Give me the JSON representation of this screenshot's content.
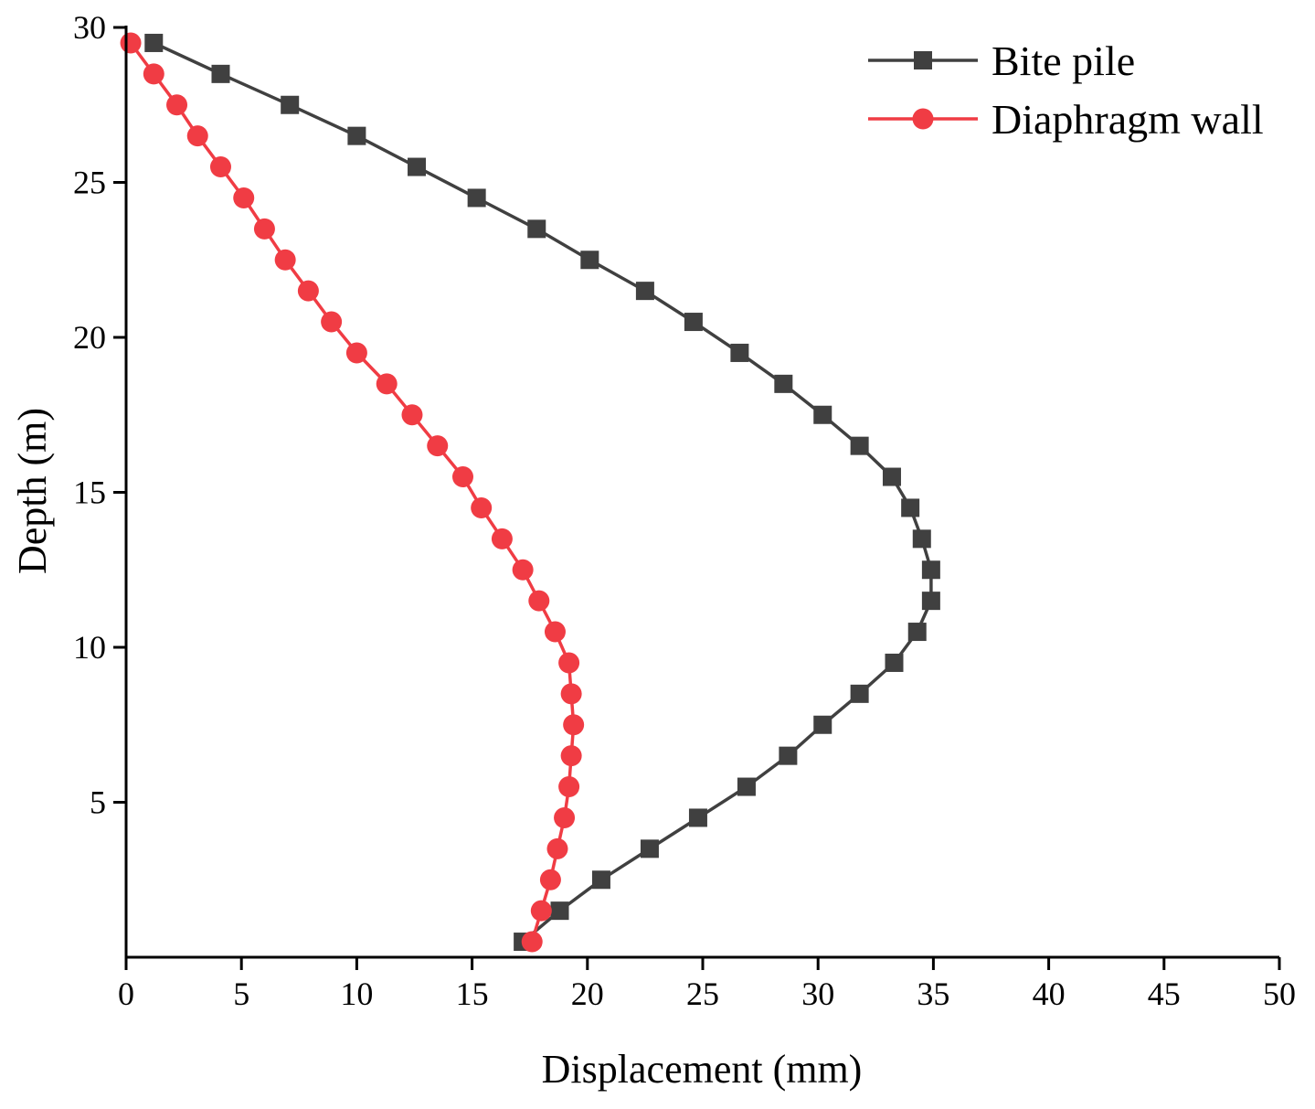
{
  "chart_data": {
    "type": "line",
    "title": "",
    "xlabel": "Displacement (mm)",
    "ylabel": "Depth (m)",
    "xlim": [
      0,
      50
    ],
    "ylim": [
      0,
      30
    ],
    "x_ticks": [
      0,
      5,
      10,
      15,
      20,
      25,
      30,
      35,
      40,
      45,
      50
    ],
    "y_ticks": [
      5,
      10,
      15,
      20,
      25,
      30
    ],
    "grid": false,
    "legend": "top-right",
    "series": [
      {
        "name": "Bite pile",
        "color": "#404040",
        "marker": "square",
        "points": [
          [
            1.2,
            29.5
          ],
          [
            4.1,
            28.5
          ],
          [
            7.1,
            27.5
          ],
          [
            10.0,
            26.5
          ],
          [
            12.6,
            25.5
          ],
          [
            15.2,
            24.5
          ],
          [
            17.8,
            23.5
          ],
          [
            20.1,
            22.5
          ],
          [
            22.5,
            21.5
          ],
          [
            24.6,
            20.5
          ],
          [
            26.6,
            19.5
          ],
          [
            28.5,
            18.5
          ],
          [
            30.2,
            17.5
          ],
          [
            31.8,
            16.5
          ],
          [
            33.2,
            15.5
          ],
          [
            34.0,
            14.5
          ],
          [
            34.5,
            13.5
          ],
          [
            34.9,
            12.5
          ],
          [
            34.9,
            11.5
          ],
          [
            34.3,
            10.5
          ],
          [
            33.3,
            9.5
          ],
          [
            31.8,
            8.5
          ],
          [
            30.2,
            7.5
          ],
          [
            28.7,
            6.5
          ],
          [
            26.9,
            5.5
          ],
          [
            24.8,
            4.5
          ],
          [
            22.7,
            3.5
          ],
          [
            20.6,
            2.5
          ],
          [
            18.8,
            1.5
          ],
          [
            17.2,
            0.5
          ]
        ]
      },
      {
        "name": "Diaphragm wall",
        "color": "#f03c44",
        "marker": "circle",
        "points": [
          [
            0.2,
            29.5
          ],
          [
            1.2,
            28.5
          ],
          [
            2.2,
            27.5
          ],
          [
            3.1,
            26.5
          ],
          [
            4.1,
            25.5
          ],
          [
            5.1,
            24.5
          ],
          [
            6.0,
            23.5
          ],
          [
            6.9,
            22.5
          ],
          [
            7.9,
            21.5
          ],
          [
            8.9,
            20.5
          ],
          [
            10.0,
            19.5
          ],
          [
            11.3,
            18.5
          ],
          [
            12.4,
            17.5
          ],
          [
            13.5,
            16.5
          ],
          [
            14.6,
            15.5
          ],
          [
            15.4,
            14.5
          ],
          [
            16.3,
            13.5
          ],
          [
            17.2,
            12.5
          ],
          [
            17.9,
            11.5
          ],
          [
            18.6,
            10.5
          ],
          [
            19.2,
            9.5
          ],
          [
            19.3,
            8.5
          ],
          [
            19.4,
            7.5
          ],
          [
            19.3,
            6.5
          ],
          [
            19.2,
            5.5
          ],
          [
            19.0,
            4.5
          ],
          [
            18.7,
            3.5
          ],
          [
            18.4,
            2.5
          ],
          [
            18.0,
            1.5
          ],
          [
            17.6,
            0.5
          ]
        ]
      }
    ]
  }
}
